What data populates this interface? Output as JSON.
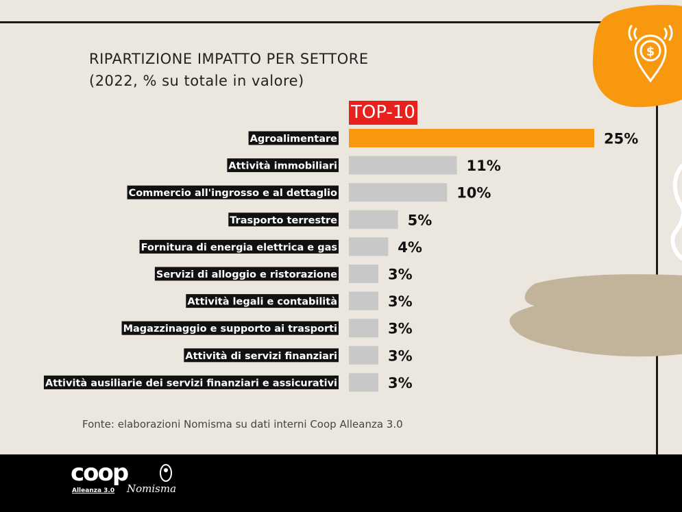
{
  "title": {
    "line1": "RIPARTIZIONE IMPATTO PER SETTORE",
    "line2": "(2022, % su totale in valore)"
  },
  "badge": "TOP-10",
  "source": "Fonte: elaborazioni Nomisma su dati interni Coop Alleanza 3.0",
  "logos": {
    "coop": "coop",
    "coop_sub": "Alleanza 3.0",
    "nomisma": "Nomisma"
  },
  "colors": {
    "highlight": "#f7980f",
    "bar": "#c8c8c8",
    "badge": "#e8211d",
    "background": "#ebe6de"
  },
  "chart_data": {
    "type": "bar",
    "orientation": "horizontal",
    "categories": [
      "Agroalimentare",
      "Attività immobiliari",
      "Commercio all'ingrosso e al dettaglio",
      "Trasporto terrestre",
      "Fornitura di energia elettrica e gas",
      "Servizi di alloggio e ristorazione",
      "Attività legali e contabilità",
      "Magazzinaggio e supporto ai trasporti",
      "Attività di servizi finanziari",
      "Attività ausiliarie dei servizi finanziari e assicurativi"
    ],
    "values": [
      25,
      11,
      10,
      5,
      4,
      3,
      3,
      3,
      3,
      3
    ],
    "labels": [
      "25%",
      "11%",
      "10%",
      "5%",
      "4%",
      "3%",
      "3%",
      "3%",
      "3%",
      "3%"
    ],
    "unit": "%",
    "highlight_index": 0,
    "title": "RIPARTIZIONE IMPATTO PER SETTORE",
    "subtitle": "(2022, % su totale in valore)",
    "xlabel": "",
    "ylabel": "",
    "grid": false,
    "legend": "none"
  }
}
